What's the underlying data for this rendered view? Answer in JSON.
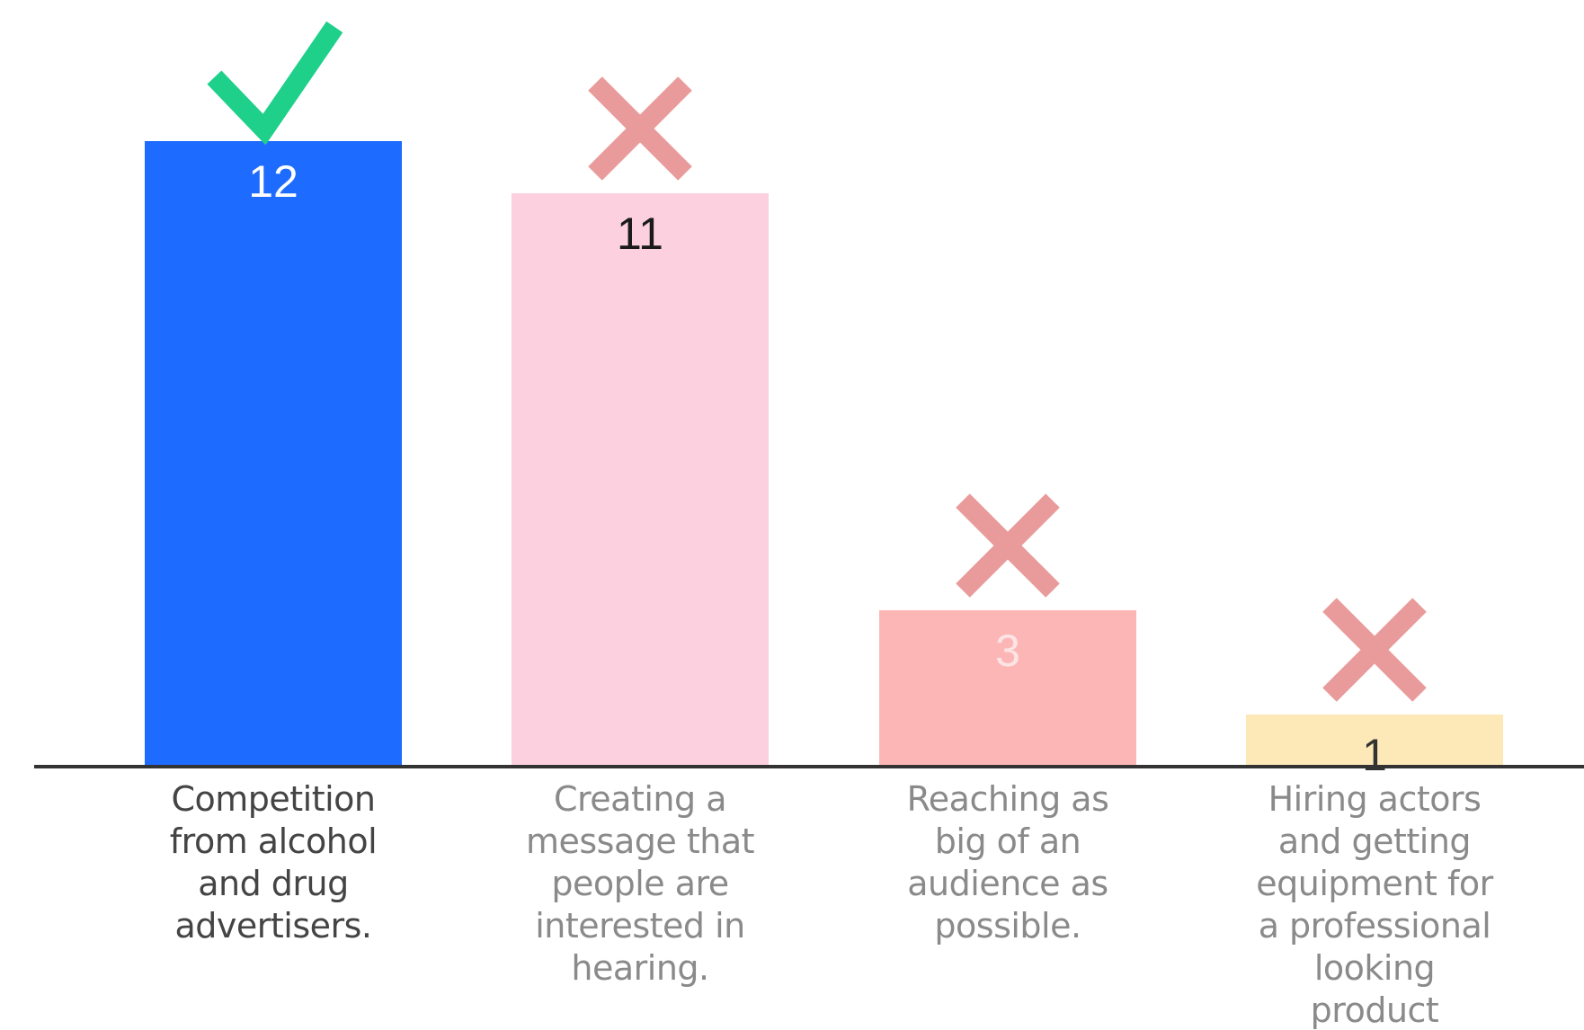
{
  "chart_data": {
    "type": "bar",
    "categories": [
      "Competition from alcohol and drug advertisers.",
      "Creating a message that people are interested in hearing.",
      "Reaching as big of an audience as possible.",
      "Hiring actors and getting equipment for a professional looking product"
    ],
    "category_label_lines": [
      [
        "Competition",
        "from alcohol",
        "and drug",
        "advertisers."
      ],
      [
        "Creating a",
        "message that",
        "people are",
        "interested in",
        "hearing."
      ],
      [
        "Reaching as",
        "big of an",
        "audience as",
        "possible."
      ],
      [
        "Hiring actors",
        "and getting",
        "equipment for",
        "a professional",
        "looking",
        "product"
      ]
    ],
    "values": [
      12,
      11,
      3,
      1
    ],
    "value_labels": [
      "12",
      "11",
      "3",
      "1"
    ],
    "bar_colors": [
      "#1e6bff",
      "#fcd0df",
      "#fcb6b6",
      "#fde9b8"
    ],
    "value_label_colors": [
      "#ffffff",
      "#1a1a1a",
      "#fde4e4",
      "#333333"
    ],
    "label_colors": [
      "#444444",
      "#8a8a8a",
      "#8a8a8a",
      "#8a8a8a"
    ],
    "markers": [
      "check-icon",
      "cross-icon",
      "cross-icon",
      "cross-icon"
    ],
    "marker_colors": {
      "check-icon": "#1fd08a",
      "cross-icon": "#e99b9b"
    },
    "axis_color": "#333333",
    "ylim": [
      0,
      12
    ],
    "title": "",
    "xlabel": "",
    "ylabel": "",
    "grid": false,
    "legend": "none"
  }
}
